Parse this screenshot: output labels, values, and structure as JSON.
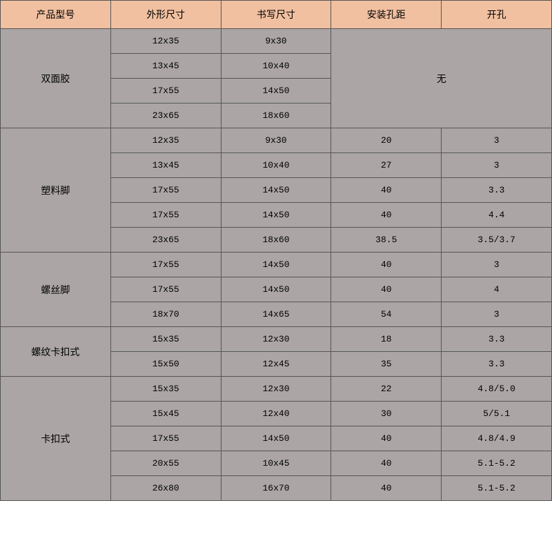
{
  "table": {
    "columns": [
      "产品型号",
      "外形尺寸",
      "书写尺寸",
      "安装孔距",
      "开孔"
    ],
    "column_widths": [
      "20%",
      "20%",
      "20%",
      "20%",
      "20%"
    ],
    "header_bg": "#f1c0a0",
    "cell_bg": "#aba5a5",
    "border_color": "#555555",
    "text_color": "#000000",
    "merged_none_label": "无",
    "groups": [
      {
        "product": "双面胶",
        "rowspan": 4,
        "merged_right": true,
        "rows": [
          {
            "outer": "12x35",
            "write": "9x30"
          },
          {
            "outer": "13x45",
            "write": "10x40"
          },
          {
            "outer": "17x55",
            "write": "14x50"
          },
          {
            "outer": "23x65",
            "write": "18x60"
          }
        ]
      },
      {
        "product": "塑料脚",
        "rowspan": 5,
        "rows": [
          {
            "outer": "12x35",
            "write": "9x30",
            "mount": "20",
            "hole": "3"
          },
          {
            "outer": "13x45",
            "write": "10x40",
            "mount": "27",
            "hole": "3"
          },
          {
            "outer": "17x55",
            "write": "14x50",
            "mount": "40",
            "hole": "3.3"
          },
          {
            "outer": "17x55",
            "write": "14x50",
            "mount": "40",
            "hole": "4.4"
          },
          {
            "outer": "23x65",
            "write": "18x60",
            "mount": "38.5",
            "hole": "3.5/3.7"
          }
        ]
      },
      {
        "product": "螺丝脚",
        "rowspan": 3,
        "rows": [
          {
            "outer": "17x55",
            "write": "14x50",
            "mount": "40",
            "hole": "3"
          },
          {
            "outer": "17x55",
            "write": "14x50",
            "mount": "40",
            "hole": "4"
          },
          {
            "outer": "18x70",
            "write": "14x65",
            "mount": "54",
            "hole": "3"
          }
        ]
      },
      {
        "product": "螺纹卡扣式",
        "rowspan": 2,
        "rows": [
          {
            "outer": "15x35",
            "write": "12x30",
            "mount": "18",
            "hole": "3.3"
          },
          {
            "outer": "15x50",
            "write": "12x45",
            "mount": "35",
            "hole": "3.3"
          }
        ]
      },
      {
        "product": "卡扣式",
        "rowspan": 5,
        "rows": [
          {
            "outer": "15x35",
            "write": "12x30",
            "mount": "22",
            "hole": "4.8/5.0"
          },
          {
            "outer": "15x45",
            "write": "12x40",
            "mount": "30",
            "hole": "5/5.1"
          },
          {
            "outer": "17x55",
            "write": "14x50",
            "mount": "40",
            "hole": "4.8/4.9"
          },
          {
            "outer": "20x55",
            "write": "10x45",
            "mount": "40",
            "hole": "5.1-5.2"
          },
          {
            "outer": "26x80",
            "write": "16x70",
            "mount": "40",
            "hole": "5.1-5.2"
          }
        ]
      }
    ]
  }
}
